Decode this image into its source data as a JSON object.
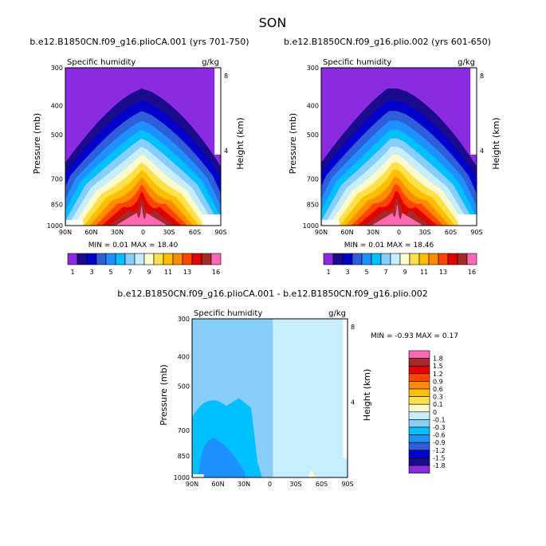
{
  "figure": {
    "season": "SON"
  },
  "chart_data": [
    {
      "type": "contour",
      "title": "b.e12.B1850CN.f09_g16.plioCA.001 (yrs 701-750)",
      "variable": "Specific humidity",
      "units": "g/kg",
      "ylabel": "Pressure (mb)",
      "ylabel_right": "Height (km)",
      "x_ticks": [
        "90N",
        "60N",
        "30N",
        "0",
        "30S",
        "60S",
        "90S"
      ],
      "y_ticks": [
        300,
        400,
        500,
        700,
        850,
        1000
      ],
      "height_ticks": [
        8,
        4
      ],
      "min": "0.01",
      "max": "18.40",
      "stats_text": "MIN =   0.01   MAX =  18.40"
    },
    {
      "type": "contour",
      "title": "b.e12.B1850CN.f09_g16.plio.002 (yrs 601-650)",
      "variable": "Specific humidity",
      "units": "g/kg",
      "ylabel": "Pressure (mb)",
      "ylabel_right": "Height (km)",
      "x_ticks": [
        "90N",
        "60N",
        "30N",
        "0",
        "30S",
        "60S",
        "90S"
      ],
      "y_ticks": [
        300,
        400,
        500,
        700,
        850,
        1000
      ],
      "height_ticks": [
        8,
        4
      ],
      "min": "0.01",
      "max": "18.46",
      "stats_text": "MIN =   0.01   MAX =  18.46"
    },
    {
      "type": "contour",
      "title": "b.e12.B1850CN.f09_g16.plioCA.001 - b.e12.B1850CN.f09_g16.plio.002",
      "variable": "Specific humidity",
      "units": "g/kg",
      "ylabel": "Pressure (mb)",
      "ylabel_right": "Height (km)",
      "x_ticks": [
        "90N",
        "60N",
        "30N",
        "0",
        "30S",
        "60S",
        "90S"
      ],
      "y_ticks": [
        300,
        400,
        500,
        700,
        850,
        1000
      ],
      "height_ticks": [
        8,
        4
      ],
      "min": "-0.93",
      "max": "0.17",
      "stats_text": "MIN =  -0.93   MAX =   0.17"
    }
  ],
  "colorbar_abs": {
    "labels": [
      "1",
      "3",
      "5",
      "7",
      "9",
      "11",
      "13",
      "16"
    ],
    "colors": [
      "#8a2be2",
      "#1a0a8c",
      "#0000cd",
      "#2f5fd8",
      "#1e90ff",
      "#00bfff",
      "#87cefa",
      "#c6eefc",
      "#fffacd",
      "#ffe14a",
      "#ffbf00",
      "#ff8c00",
      "#ff4500",
      "#e00000",
      "#a52a2a",
      "#ff69b4"
    ]
  },
  "colorbar_diff": {
    "labels": [
      "1.8",
      "1.5",
      "1.2",
      "0.9",
      "0.6",
      "0.3",
      "0.1",
      "0",
      "-0.1",
      "-0.3",
      "-0.6",
      "-0.9",
      "-1.2",
      "-1.5",
      "-1.8"
    ],
    "colors": [
      "#ff69b4",
      "#a52a2a",
      "#e00000",
      "#ff4500",
      "#ff8c00",
      "#ffbf00",
      "#ffe14a",
      "#fffacd",
      "#c6eefc",
      "#87cefa",
      "#00bfff",
      "#1e90ff",
      "#2f5fd8",
      "#0000cd",
      "#1a0a8c",
      "#8a2be2"
    ]
  }
}
